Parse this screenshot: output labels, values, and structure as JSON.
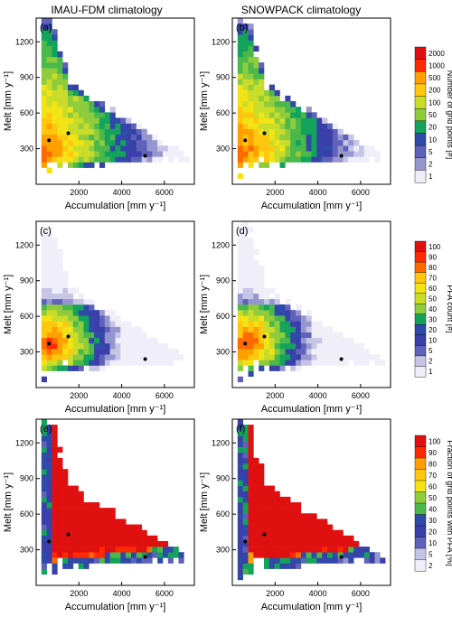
{
  "column_titles": [
    "IMAU-FDM climatology",
    "SNOWPACK climatology"
  ],
  "colorbars": [
    {
      "title": "Number of grid points [#]",
      "levels": [
        "2000",
        "1000",
        "500",
        "200",
        "100",
        "50",
        "20",
        "10",
        "5",
        "2",
        "1"
      ]
    },
    {
      "title": "PFA count [#]",
      "levels": [
        "100",
        "90",
        "80",
        "70",
        "60",
        "50",
        "40",
        "30",
        "20",
        "10",
        "5",
        "2",
        "1"
      ]
    },
    {
      "title": "Fraction of grid points with PFA [%]",
      "levels": [
        "100",
        "90",
        "80",
        "70",
        "60",
        "50",
        "40",
        "30",
        "20",
        "10",
        "5",
        "2"
      ]
    }
  ],
  "palette": [
    "#f0eef8",
    "#c7c5e6",
    "#9696cf",
    "#5e62b8",
    "#3a3faa",
    "#2f4aa8",
    "#14a35a",
    "#4bb84a",
    "#8fcc3c",
    "#c9dc28",
    "#f2e414",
    "#ffc70e",
    "#ffa000",
    "#ff6a00",
    "#ff2a00",
    "#e01010"
  ],
  "chart_data": [
    {
      "panel_label": "(a)",
      "type": "heatmap",
      "variant": "count",
      "colorbar": 0,
      "xlabel": "Accumulation [mm y⁻¹]",
      "ylabel": "Melt [mm y⁻¹]",
      "xlim": [
        0,
        7400
      ],
      "ylim": [
        0,
        1400
      ],
      "xticks": [
        "2000",
        "4000",
        "6000"
      ],
      "yticks": [
        "300",
        "600",
        "900",
        "1200"
      ],
      "points": [
        [
          600,
          370
        ],
        [
          1500,
          430
        ],
        [
          5100,
          240
        ]
      ]
    },
    {
      "panel_label": "(b)",
      "type": "heatmap",
      "variant": "count",
      "colorbar": 0,
      "xlabel": "Accumulation [mm y⁻¹]",
      "ylabel": "Melt [mm y⁻¹]",
      "xlim": [
        0,
        7400
      ],
      "ylim": [
        0,
        1400
      ],
      "xticks": [
        "2000",
        "4000",
        "6000"
      ],
      "yticks": [
        "300",
        "600",
        "900",
        "1200"
      ],
      "points": [
        [
          600,
          370
        ],
        [
          1500,
          430
        ],
        [
          5100,
          240
        ]
      ]
    },
    {
      "panel_label": "(c)",
      "type": "heatmap",
      "variant": "pfa",
      "colorbar": 1,
      "xlabel": "Accumulation [mm y⁻¹]",
      "ylabel": "Melt [mm y⁻¹]",
      "xlim": [
        0,
        7400
      ],
      "ylim": [
        0,
        1400
      ],
      "xticks": [
        "2000",
        "4000",
        "6000"
      ],
      "yticks": [
        "300",
        "600",
        "900",
        "1200"
      ],
      "points": [
        [
          600,
          370
        ],
        [
          1500,
          430
        ],
        [
          5100,
          240
        ]
      ]
    },
    {
      "panel_label": "(d)",
      "type": "heatmap",
      "variant": "pfa",
      "colorbar": 1,
      "xlabel": "Accumulation [mm y⁻¹]",
      "ylabel": "Melt [mm y⁻¹]",
      "xlim": [
        0,
        7400
      ],
      "ylim": [
        0,
        1400
      ],
      "xticks": [
        "2000",
        "4000",
        "6000"
      ],
      "yticks": [
        "300",
        "600",
        "900",
        "1200"
      ],
      "points": [
        [
          600,
          370
        ],
        [
          1500,
          430
        ],
        [
          5100,
          240
        ]
      ]
    },
    {
      "panel_label": "(e)",
      "type": "heatmap",
      "variant": "fraction",
      "colorbar": 2,
      "xlabel": "Accumulation [mm y⁻¹]",
      "ylabel": "Melt [mm y⁻¹]",
      "xlim": [
        0,
        7400
      ],
      "ylim": [
        0,
        1400
      ],
      "xticks": [
        "2000",
        "4000",
        "6000"
      ],
      "yticks": [
        "300",
        "600",
        "900",
        "1200"
      ],
      "points": [
        [
          600,
          370
        ],
        [
          1500,
          430
        ],
        [
          5100,
          240
        ]
      ]
    },
    {
      "panel_label": "(f)",
      "type": "heatmap",
      "variant": "fraction",
      "colorbar": 2,
      "xlabel": "Accumulation [mm y⁻¹]",
      "ylabel": "Melt [mm y⁻¹]",
      "xlim": [
        0,
        7400
      ],
      "ylim": [
        0,
        1400
      ],
      "xticks": [
        "2000",
        "4000",
        "6000"
      ],
      "yticks": [
        "300",
        "600",
        "900",
        "1200"
      ],
      "points": [
        [
          600,
          370
        ],
        [
          1500,
          430
        ],
        [
          5100,
          240
        ]
      ]
    }
  ]
}
